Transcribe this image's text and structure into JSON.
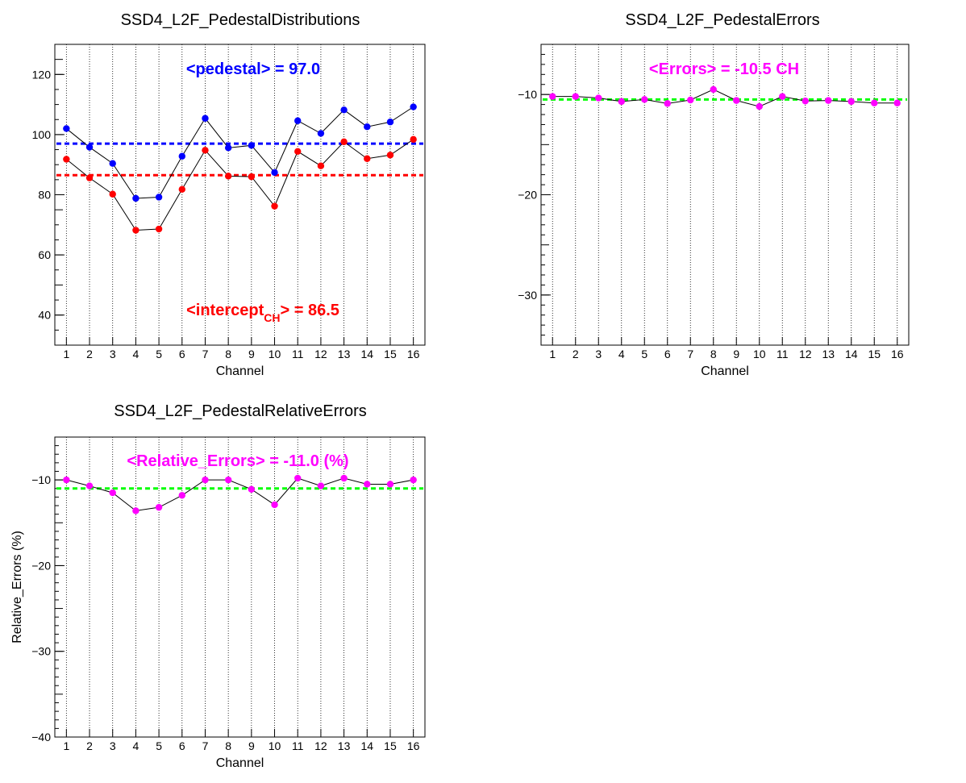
{
  "chart_data": [
    {
      "type": "line",
      "title": "SSD4_L2F_PedestalDistributions",
      "xlabel": "Channel",
      "ylabel": "",
      "xlim": [
        0.5,
        16.5
      ],
      "ylim": [
        30,
        130
      ],
      "x_ticks": [
        1,
        2,
        3,
        4,
        5,
        6,
        7,
        8,
        9,
        10,
        11,
        12,
        13,
        14,
        15,
        16
      ],
      "y_ticks": [
        40,
        60,
        80,
        100,
        120
      ],
      "grid": "vertical-dotted",
      "x": [
        1,
        2,
        3,
        4,
        5,
        6,
        7,
        8,
        9,
        10,
        11,
        12,
        13,
        14,
        15,
        16
      ],
      "series": [
        {
          "values": [
            102.0,
            95.8,
            90.4,
            78.8,
            79.2,
            92.8,
            105.4,
            95.6,
            96.4,
            87.4,
            104.6,
            100.4,
            108.2,
            102.6,
            104.2,
            109.2
          ],
          "color": "#0000ff"
        },
        {
          "values": [
            91.8,
            85.6,
            80.2,
            68.2,
            68.6,
            81.8,
            94.8,
            86.2,
            86.0,
            76.2,
            94.4,
            89.6,
            97.6,
            92.0,
            93.2,
            98.4
          ],
          "color": "#ff0000"
        }
      ],
      "reference_lines": [
        {
          "y": 97.0,
          "color": "#0000ff"
        },
        {
          "y": 86.5,
          "color": "#ff0000"
        }
      ],
      "annotations": [
        {
          "text": "<pedestal> = 97.0",
          "color": "#0000ff"
        },
        {
          "text": "<intercept",
          "sub": "CH",
          "tail": "> = 86.5",
          "color": "#ff0000"
        }
      ]
    },
    {
      "type": "line",
      "title": "SSD4_L2F_PedestalErrors",
      "xlabel": "Channel",
      "ylabel": "",
      "xlim": [
        0.5,
        16.5
      ],
      "ylim": [
        -35,
        -5
      ],
      "x_ticks": [
        1,
        2,
        3,
        4,
        5,
        6,
        7,
        8,
        9,
        10,
        11,
        12,
        13,
        14,
        15,
        16
      ],
      "y_ticks": [
        -30,
        -20,
        -10
      ],
      "grid": "vertical-dotted",
      "x": [
        1,
        2,
        3,
        4,
        5,
        6,
        7,
        8,
        9,
        10,
        11,
        12,
        13,
        14,
        15,
        16
      ],
      "series": [
        {
          "values": [
            -10.2,
            -10.2,
            -10.35,
            -10.7,
            -10.5,
            -10.9,
            -10.55,
            -9.5,
            -10.6,
            -11.2,
            -10.2,
            -10.65,
            -10.6,
            -10.7,
            -10.85,
            -10.85
          ],
          "color": "#ff00ff"
        }
      ],
      "reference_lines": [
        {
          "y": -10.5,
          "color": "#00ff00"
        }
      ],
      "annotations": [
        {
          "text": "<Errors> = -10.5 CH",
          "color": "#ff00ff"
        }
      ]
    },
    {
      "type": "line",
      "title": "SSD4_L2F_PedestalRelativeErrors",
      "xlabel": "Channel",
      "ylabel": "Relative_Errors (%)",
      "xlim": [
        0.5,
        16.5
      ],
      "ylim": [
        -40,
        -5
      ],
      "x_ticks": [
        1,
        2,
        3,
        4,
        5,
        6,
        7,
        8,
        9,
        10,
        11,
        12,
        13,
        14,
        15,
        16
      ],
      "y_ticks": [
        -40,
        -30,
        -20,
        -10
      ],
      "grid": "vertical-dotted",
      "x": [
        1,
        2,
        3,
        4,
        5,
        6,
        7,
        8,
        9,
        10,
        11,
        12,
        13,
        14,
        15,
        16
      ],
      "series": [
        {
          "values": [
            -10.0,
            -10.7,
            -11.5,
            -13.6,
            -13.2,
            -11.8,
            -10.0,
            -10.0,
            -11.1,
            -12.9,
            -9.8,
            -10.7,
            -9.8,
            -10.5,
            -10.5,
            -10.0
          ],
          "color": "#ff00ff"
        }
      ],
      "reference_lines": [
        {
          "y": -11.0,
          "color": "#00ff00"
        }
      ],
      "annotations": [
        {
          "text": "<Relative_Errors> = -11.0 (%)",
          "color": "#ff00ff"
        }
      ]
    }
  ]
}
